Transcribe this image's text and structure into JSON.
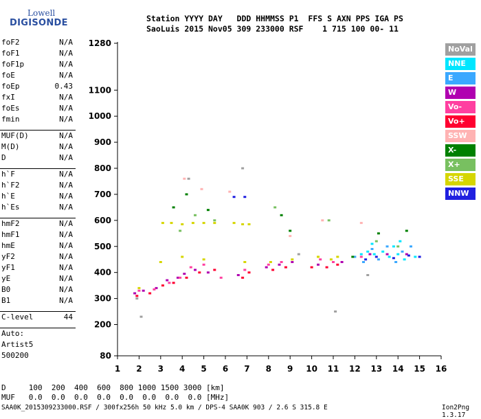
{
  "logo": {
    "line1": "Lowell",
    "line2": "DIGISONDE"
  },
  "header": {
    "line1": "Station YYYY DAY   DDD HHMMSS P1  FFS S AXN PPS IGA PS",
    "line2": "SaoLuis 2015 Nov05 309 233000 RSF    1 715 100 00- 11"
  },
  "params": [
    {
      "name": "foF2",
      "value": "N/A"
    },
    {
      "name": "foF1",
      "value": "N/A"
    },
    {
      "name": "foF1p",
      "value": "N/A"
    },
    {
      "name": "foE",
      "value": "N/A"
    },
    {
      "name": "foEp",
      "value": "0.43"
    },
    {
      "name": "fxI",
      "value": "N/A"
    },
    {
      "name": "foEs",
      "value": "N/A"
    },
    {
      "name": "fmin",
      "value": "N/A"
    },
    {
      "name": "MUF(D)",
      "value": "N/A"
    },
    {
      "name": "M(D)",
      "value": "N/A"
    },
    {
      "name": "D",
      "value": "N/A"
    },
    {
      "name": "h`F",
      "value": "N/A"
    },
    {
      "name": "h`F2",
      "value": "N/A"
    },
    {
      "name": "h`E",
      "value": "N/A"
    },
    {
      "name": "h`Es",
      "value": "N/A"
    },
    {
      "name": "hmF2",
      "value": "N/A"
    },
    {
      "name": "hmF1",
      "value": "N/A"
    },
    {
      "name": "hmE",
      "value": "N/A"
    },
    {
      "name": "yF2",
      "value": "N/A"
    },
    {
      "name": "yF1",
      "value": "N/A"
    },
    {
      "name": "yE",
      "value": "N/A"
    },
    {
      "name": "B0",
      "value": "N/A"
    },
    {
      "name": "B1",
      "value": "N/A"
    },
    {
      "name": "C-level",
      "value": "44"
    }
  ],
  "auto": {
    "label": "Auto:",
    "scaler": "Artist5",
    "version": "500200"
  },
  "legend": [
    {
      "label": "NoVal",
      "color": "#a0a0a0"
    },
    {
      "label": "NNE",
      "color": "#00e6ff"
    },
    {
      "label": "E",
      "color": "#3aa8ff"
    },
    {
      "label": "W",
      "color": "#b000b0"
    },
    {
      "label": "Vo-",
      "color": "#ff3fa0"
    },
    {
      "label": "Vo+",
      "color": "#ff0030"
    },
    {
      "label": "SSW",
      "color": "#ffb3b3"
    },
    {
      "label": "X-",
      "color": "#008000"
    },
    {
      "label": "X+",
      "color": "#78c060"
    },
    {
      "label": "SSE",
      "color": "#d6d600"
    },
    {
      "label": "NNW",
      "color": "#2020e0"
    }
  ],
  "footer": {
    "d_line": "D     100  200  400  600  800 1000 1500 3000 [km]",
    "muf_line": "MUF   0.0  0.0  0.0  0.0  0.0  0.0  0.0  0.0 [MHz]",
    "file_line": "SAA0K_2015309233000.RSF / 300fx256h 50 kHz 5.0 km / DPS-4 SAA0K 903 / 2.6 S 315.8 E",
    "version": "Ion2Png 1.3.17"
  },
  "chart_data": {
    "type": "scatter",
    "title": "",
    "xlabel": "",
    "ylabel": "",
    "xlim": [
      1,
      16
    ],
    "ylim": [
      80,
      1280
    ],
    "x_ticks": [
      1,
      2,
      3,
      4,
      5,
      6,
      7,
      8,
      9,
      10,
      11,
      12,
      13,
      14,
      15,
      16
    ],
    "y_ticks": [
      80,
      200,
      300,
      400,
      500,
      600,
      700,
      800,
      900,
      1000,
      1100,
      1280
    ],
    "grid": false,
    "legend_position": "right",
    "series": [
      {
        "name": "W",
        "color": "#b000b0",
        "points": [
          [
            1.8,
            320
          ],
          [
            2.2,
            330
          ],
          [
            2.8,
            340
          ],
          [
            3.3,
            370
          ],
          [
            3.8,
            380
          ],
          [
            4.1,
            395
          ],
          [
            4.6,
            410
          ],
          [
            5.2,
            400
          ],
          [
            6.6,
            390
          ],
          [
            7.9,
            420
          ],
          [
            8.5,
            430
          ],
          [
            9.1,
            440
          ],
          [
            10.3,
            430
          ],
          [
            11.4,
            440
          ],
          [
            12.7,
            470
          ],
          [
            13.5,
            470
          ],
          [
            14.4,
            470
          ]
        ]
      },
      {
        "name": "Vo+",
        "color": "#ff0030",
        "points": [
          [
            1.9,
            310
          ],
          [
            2.5,
            320
          ],
          [
            3.1,
            350
          ],
          [
            3.6,
            360
          ],
          [
            4.2,
            380
          ],
          [
            4.8,
            400
          ],
          [
            5.5,
            410
          ],
          [
            6.8,
            380
          ],
          [
            7.1,
            400
          ],
          [
            8.2,
            410
          ],
          [
            8.8,
            420
          ],
          [
            10.0,
            420
          ],
          [
            10.7,
            420
          ],
          [
            11.2,
            430
          ]
        ]
      },
      {
        "name": "Vo-",
        "color": "#ff3fa0",
        "points": [
          [
            2.0,
            330
          ],
          [
            2.7,
            335
          ],
          [
            3.4,
            360
          ],
          [
            3.9,
            380
          ],
          [
            4.4,
            420
          ],
          [
            5.0,
            430
          ],
          [
            5.8,
            380
          ],
          [
            6.9,
            410
          ],
          [
            8.0,
            430
          ],
          [
            8.6,
            440
          ],
          [
            10.4,
            450
          ],
          [
            11.0,
            440
          ],
          [
            12.3,
            460
          ]
        ]
      },
      {
        "name": "SSE",
        "color": "#d6d600",
        "points": [
          [
            3.1,
            590
          ],
          [
            3.5,
            590
          ],
          [
            4.0,
            585
          ],
          [
            4.5,
            590
          ],
          [
            5.0,
            590
          ],
          [
            5.5,
            590
          ],
          [
            6.4,
            590
          ],
          [
            6.8,
            585
          ],
          [
            7.1,
            585
          ],
          [
            2.0,
            340
          ],
          [
            3.0,
            440
          ],
          [
            4.0,
            460
          ],
          [
            5.0,
            450
          ],
          [
            6.9,
            440
          ],
          [
            8.1,
            440
          ],
          [
            9.1,
            450
          ],
          [
            10.3,
            460
          ],
          [
            10.9,
            450
          ],
          [
            11.2,
            460
          ]
        ]
      },
      {
        "name": "NNE",
        "color": "#00e6ff",
        "points": [
          [
            12.3,
            470
          ],
          [
            12.6,
            480
          ],
          [
            12.9,
            470
          ],
          [
            13.3,
            480
          ],
          [
            13.6,
            460
          ],
          [
            14.0,
            470
          ],
          [
            14.3,
            450
          ],
          [
            14.8,
            460
          ],
          [
            13.8,
            500
          ],
          [
            12.8,
            510
          ],
          [
            14.1,
            520
          ]
        ]
      },
      {
        "name": "E",
        "color": "#3aa8ff",
        "points": [
          [
            12.0,
            460
          ],
          [
            12.4,
            440
          ],
          [
            12.8,
            490
          ],
          [
            13.1,
            450
          ],
          [
            13.5,
            500
          ],
          [
            13.9,
            440
          ],
          [
            14.2,
            480
          ],
          [
            14.6,
            500
          ]
        ]
      },
      {
        "name": "NNW",
        "color": "#2020e0",
        "points": [
          [
            6.4,
            690
          ],
          [
            6.9,
            690
          ],
          [
            12.5,
            450
          ],
          [
            13.0,
            460
          ],
          [
            13.8,
            455
          ],
          [
            14.5,
            465
          ],
          [
            15.0,
            460
          ]
        ]
      },
      {
        "name": "X-",
        "color": "#008000",
        "points": [
          [
            3.6,
            650
          ],
          [
            4.2,
            700
          ],
          [
            5.2,
            640
          ],
          [
            8.6,
            620
          ],
          [
            9.0,
            560
          ],
          [
            11.9,
            460
          ],
          [
            13.1,
            550
          ],
          [
            14.4,
            560
          ]
        ]
      },
      {
        "name": "X+",
        "color": "#78c060",
        "points": [
          [
            3.9,
            560
          ],
          [
            4.6,
            620
          ],
          [
            5.5,
            600
          ],
          [
            8.3,
            650
          ],
          [
            10.8,
            600
          ],
          [
            13.0,
            520
          ],
          [
            14.0,
            500
          ]
        ]
      },
      {
        "name": "SSW",
        "color": "#ffb3b3",
        "points": [
          [
            4.1,
            760
          ],
          [
            4.9,
            720
          ],
          [
            6.2,
            710
          ],
          [
            9.0,
            540
          ],
          [
            10.5,
            600
          ],
          [
            12.3,
            590
          ]
        ]
      },
      {
        "name": "NoVal",
        "color": "#a0a0a0",
        "points": [
          [
            1.9,
            300
          ],
          [
            2.1,
            230
          ],
          [
            4.3,
            760
          ],
          [
            6.8,
            800
          ],
          [
            9.4,
            470
          ],
          [
            11.1,
            250
          ],
          [
            12.6,
            390
          ]
        ]
      }
    ]
  }
}
